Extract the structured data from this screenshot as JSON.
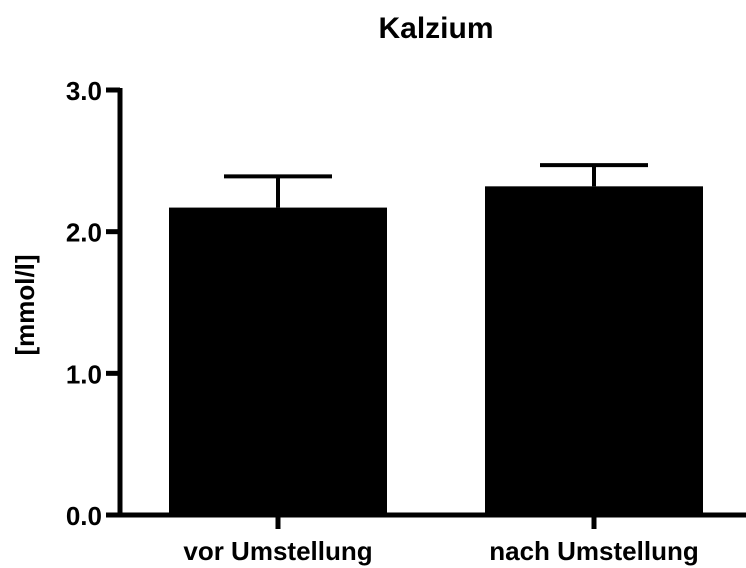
{
  "chart_data": {
    "type": "bar",
    "title": "Kalzium",
    "xlabel": "",
    "ylabel": "[mmol/l]",
    "categories": [
      "vor Umstellung",
      "nach Umstellung"
    ],
    "values": [
      2.17,
      2.32
    ],
    "error_upper": [
      2.39,
      2.47
    ],
    "ylim": [
      0,
      3
    ],
    "yticks": [
      "0.0",
      "1.0",
      "2.0",
      "3.0"
    ],
    "ytick_values": [
      0,
      1,
      2,
      3
    ],
    "grid": false,
    "legend": "none",
    "bar_color": "#000000",
    "axis_color": "#000000"
  }
}
